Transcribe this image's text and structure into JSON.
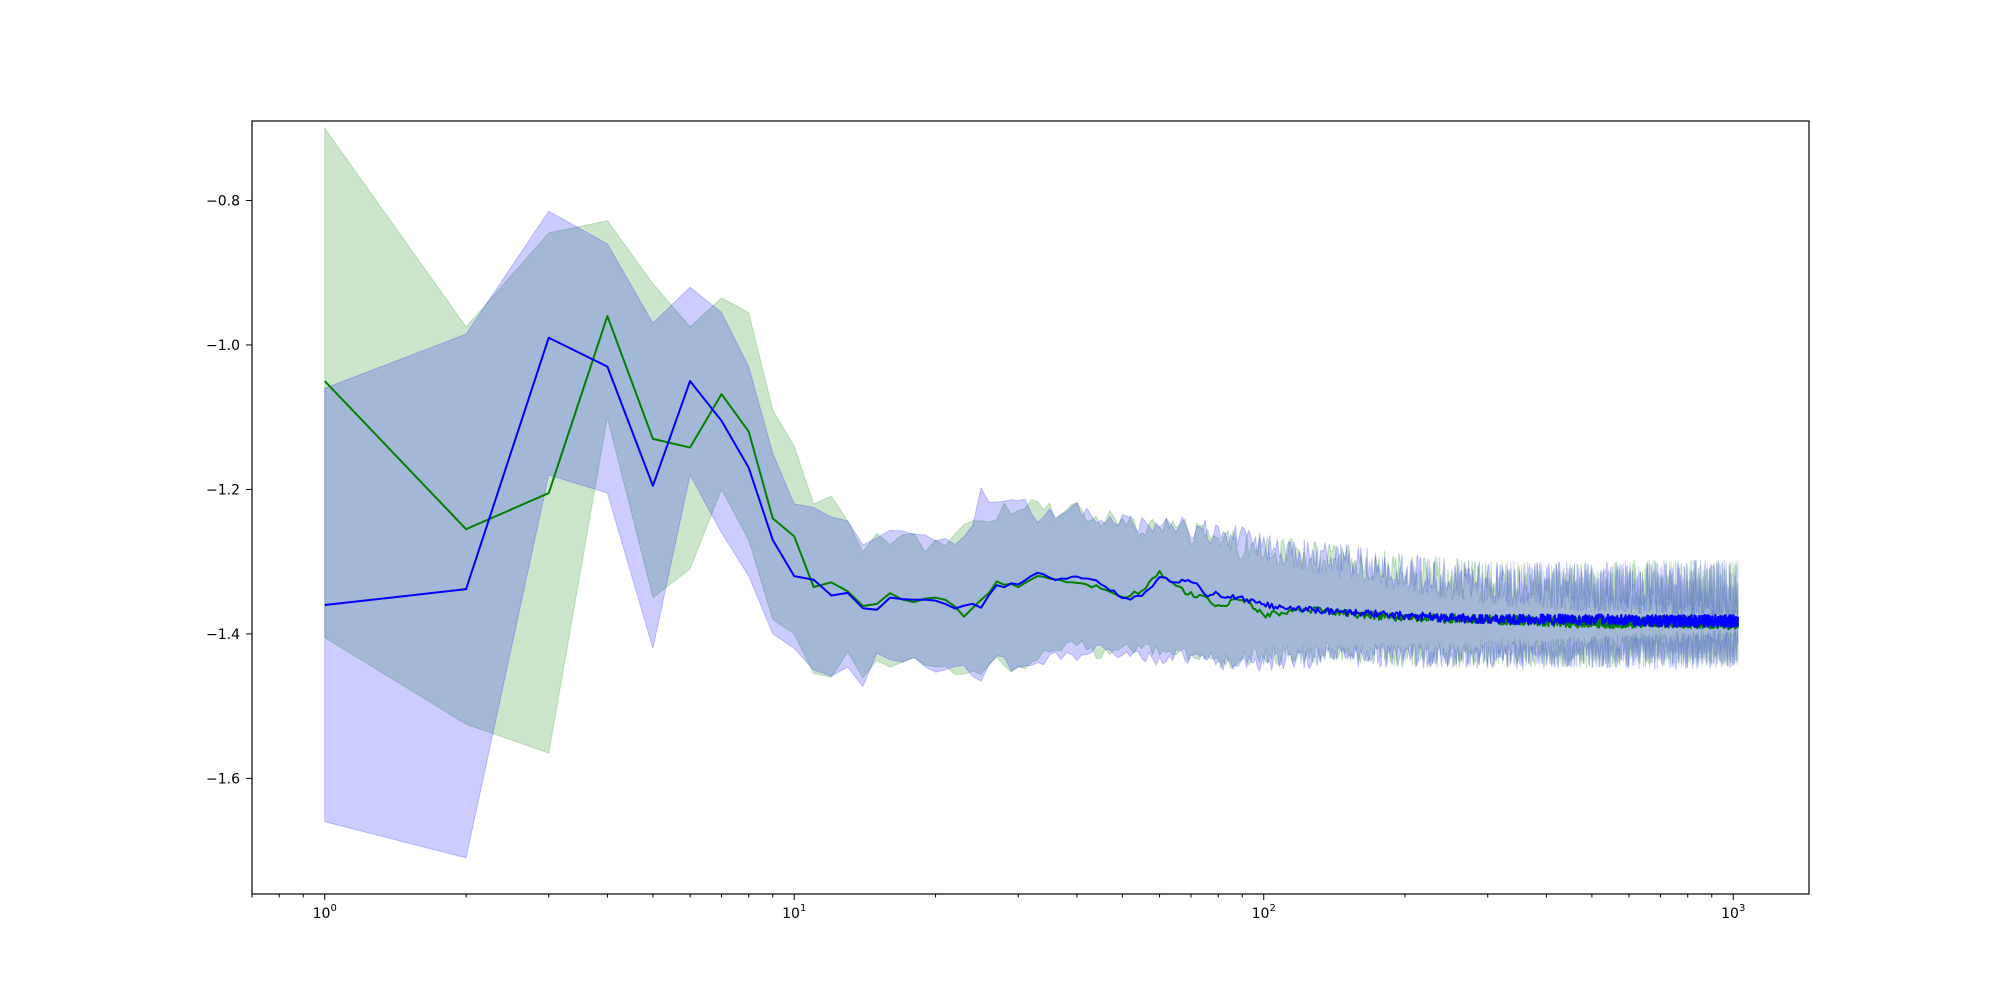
{
  "chart_data": {
    "type": "line",
    "title": "",
    "xlabel": "",
    "ylabel": "",
    "xscale": "log",
    "xlim": [
      0.7,
      1450
    ],
    "ylim": [
      -1.76,
      -0.69
    ],
    "grid": false,
    "legend": "none",
    "x_ticks": [
      {
        "value": 1,
        "base": "10",
        "exp": "0"
      },
      {
        "value": 10,
        "base": "10",
        "exp": "1"
      },
      {
        "value": 100,
        "base": "10",
        "exp": "2"
      },
      {
        "value": 1000,
        "base": "10",
        "exp": "3"
      }
    ],
    "y_ticks": [
      {
        "value": -0.8,
        "label": "−0.8"
      },
      {
        "value": -1.0,
        "label": "−1.0"
      },
      {
        "value": -1.2,
        "label": "−1.2"
      },
      {
        "value": -1.4,
        "label": "−1.4"
      },
      {
        "value": -1.6,
        "label": "−1.6"
      }
    ],
    "x_extent": [
      1,
      1024
    ],
    "series": [
      {
        "color": "#008000",
        "band_color": "#008000",
        "band_opacity": 0.2,
        "mean": [
          [
            1,
            -1.05
          ],
          [
            2,
            -1.255
          ],
          [
            3,
            -1.205
          ],
          [
            4,
            -0.96
          ],
          [
            5,
            -1.13
          ],
          [
            6,
            -1.142
          ],
          [
            7,
            -1.068
          ],
          [
            8,
            -1.12
          ],
          [
            9,
            -1.24
          ],
          [
            10,
            -1.265
          ],
          [
            11,
            -1.335
          ],
          [
            12,
            -1.33
          ],
          [
            13,
            -1.34
          ],
          [
            14,
            -1.36
          ],
          [
            15,
            -1.36
          ],
          [
            16,
            -1.345
          ],
          [
            18,
            -1.355
          ],
          [
            20,
            -1.35
          ],
          [
            22,
            -1.36
          ],
          [
            23,
            -1.375
          ],
          [
            25,
            -1.355
          ],
          [
            27,
            -1.33
          ],
          [
            30,
            -1.335
          ],
          [
            33,
            -1.32
          ],
          [
            36,
            -1.325
          ],
          [
            40,
            -1.33
          ],
          [
            45,
            -1.335
          ],
          [
            50,
            -1.35
          ],
          [
            55,
            -1.34
          ],
          [
            60,
            -1.315
          ],
          [
            65,
            -1.335
          ],
          [
            70,
            -1.345
          ],
          [
            75,
            -1.35
          ],
          [
            80,
            -1.362
          ],
          [
            90,
            -1.35
          ],
          [
            100,
            -1.375
          ],
          [
            120,
            -1.365
          ],
          [
            150,
            -1.372
          ],
          [
            200,
            -1.378
          ],
          [
            300,
            -1.38
          ],
          [
            500,
            -1.385
          ],
          [
            700,
            -1.383
          ],
          [
            1024,
            -1.385
          ]
        ],
        "upper": [
          [
            1,
            -0.7
          ],
          [
            2,
            -0.975
          ],
          [
            3,
            -0.845
          ],
          [
            4,
            -0.828
          ],
          [
            5,
            -0.915
          ],
          [
            6,
            -0.975
          ],
          [
            7,
            -0.935
          ],
          [
            8,
            -0.955
          ],
          [
            9,
            -1.09
          ],
          [
            10,
            -1.14
          ],
          [
            11,
            -1.22
          ],
          [
            12,
            -1.215
          ],
          [
            13,
            -1.24
          ],
          [
            14,
            -1.28
          ],
          [
            15,
            -1.26
          ],
          [
            16,
            -1.265
          ],
          [
            18,
            -1.27
          ],
          [
            20,
            -1.28
          ],
          [
            22,
            -1.26
          ],
          [
            25,
            -1.24
          ],
          [
            27,
            -1.23
          ],
          [
            30,
            -1.225
          ],
          [
            33,
            -1.21
          ],
          [
            36,
            -1.235
          ],
          [
            40,
            -1.23
          ],
          [
            45,
            -1.24
          ],
          [
            50,
            -1.245
          ],
          [
            55,
            -1.255
          ],
          [
            60,
            -1.245
          ],
          [
            70,
            -1.26
          ],
          [
            80,
            -1.27
          ],
          [
            100,
            -1.285
          ],
          [
            120,
            -1.29
          ],
          [
            150,
            -1.3
          ],
          [
            200,
            -1.315
          ],
          [
            300,
            -1.33
          ],
          [
            500,
            -1.335
          ],
          [
            700,
            -1.335
          ],
          [
            1024,
            -1.34
          ]
        ],
        "lower": [
          [
            1,
            -1.405
          ],
          [
            2,
            -1.525
          ],
          [
            3,
            -1.565
          ],
          [
            4,
            -1.1
          ],
          [
            5,
            -1.35
          ],
          [
            6,
            -1.31
          ],
          [
            7,
            -1.2
          ],
          [
            8,
            -1.27
          ],
          [
            9,
            -1.38
          ],
          [
            10,
            -1.4
          ],
          [
            11,
            -1.455
          ],
          [
            12,
            -1.455
          ],
          [
            13,
            -1.43
          ],
          [
            14,
            -1.455
          ],
          [
            15,
            -1.44
          ],
          [
            16,
            -1.445
          ],
          [
            18,
            -1.44
          ],
          [
            20,
            -1.445
          ],
          [
            22,
            -1.455
          ],
          [
            25,
            -1.45
          ],
          [
            27,
            -1.44
          ],
          [
            30,
            -1.45
          ],
          [
            33,
            -1.43
          ],
          [
            36,
            -1.42
          ],
          [
            40,
            -1.41
          ],
          [
            45,
            -1.43
          ],
          [
            50,
            -1.42
          ],
          [
            60,
            -1.425
          ],
          [
            70,
            -1.43
          ],
          [
            80,
            -1.44
          ],
          [
            100,
            -1.43
          ],
          [
            150,
            -1.425
          ],
          [
            200,
            -1.43
          ],
          [
            300,
            -1.425
          ],
          [
            500,
            -1.425
          ],
          [
            700,
            -1.42
          ],
          [
            1024,
            -1.42
          ]
        ]
      },
      {
        "color": "#0000ff",
        "band_color": "#0000ff",
        "band_opacity": 0.2,
        "mean": [
          [
            1,
            -1.36
          ],
          [
            2,
            -1.338
          ],
          [
            3,
            -0.99
          ],
          [
            4,
            -1.03
          ],
          [
            5,
            -1.195
          ],
          [
            6,
            -1.05
          ],
          [
            7,
            -1.105
          ],
          [
            8,
            -1.17
          ],
          [
            9,
            -1.27
          ],
          [
            10,
            -1.32
          ],
          [
            11,
            -1.325
          ],
          [
            12,
            -1.345
          ],
          [
            13,
            -1.345
          ],
          [
            14,
            -1.365
          ],
          [
            15,
            -1.365
          ],
          [
            16,
            -1.352
          ],
          [
            18,
            -1.352
          ],
          [
            20,
            -1.355
          ],
          [
            22,
            -1.365
          ],
          [
            24,
            -1.36
          ],
          [
            25,
            -1.362
          ],
          [
            27,
            -1.335
          ],
          [
            30,
            -1.33
          ],
          [
            33,
            -1.315
          ],
          [
            36,
            -1.325
          ],
          [
            40,
            -1.32
          ],
          [
            45,
            -1.33
          ],
          [
            50,
            -1.35
          ],
          [
            55,
            -1.35
          ],
          [
            60,
            -1.32
          ],
          [
            65,
            -1.33
          ],
          [
            70,
            -1.325
          ],
          [
            75,
            -1.345
          ],
          [
            80,
            -1.345
          ],
          [
            90,
            -1.35
          ],
          [
            100,
            -1.36
          ],
          [
            120,
            -1.365
          ],
          [
            150,
            -1.37
          ],
          [
            200,
            -1.375
          ],
          [
            300,
            -1.38
          ],
          [
            500,
            -1.38
          ],
          [
            700,
            -1.382
          ],
          [
            1024,
            -1.382
          ]
        ],
        "upper": [
          [
            1,
            -1.06
          ],
          [
            2,
            -0.985
          ],
          [
            3,
            -0.815
          ],
          [
            4,
            -0.86
          ],
          [
            5,
            -0.97
          ],
          [
            6,
            -0.92
          ],
          [
            7,
            -0.955
          ],
          [
            8,
            -1.03
          ],
          [
            9,
            -1.15
          ],
          [
            10,
            -1.22
          ],
          [
            11,
            -1.225
          ],
          [
            12,
            -1.245
          ],
          [
            13,
            -1.255
          ],
          [
            14,
            -1.265
          ],
          [
            15,
            -1.255
          ],
          [
            16,
            -1.265
          ],
          [
            18,
            -1.27
          ],
          [
            20,
            -1.265
          ],
          [
            22,
            -1.275
          ],
          [
            24,
            -1.255
          ],
          [
            25,
            -1.2
          ],
          [
            27,
            -1.23
          ],
          [
            30,
            -1.21
          ],
          [
            33,
            -1.24
          ],
          [
            36,
            -1.235
          ],
          [
            40,
            -1.225
          ],
          [
            45,
            -1.24
          ],
          [
            50,
            -1.245
          ],
          [
            55,
            -1.25
          ],
          [
            60,
            -1.245
          ],
          [
            70,
            -1.255
          ],
          [
            80,
            -1.26
          ],
          [
            100,
            -1.28
          ],
          [
            120,
            -1.29
          ],
          [
            150,
            -1.3
          ],
          [
            200,
            -1.315
          ],
          [
            300,
            -1.33
          ],
          [
            500,
            -1.335
          ],
          [
            700,
            -1.335
          ],
          [
            1024,
            -1.34
          ]
        ],
        "lower": [
          [
            1,
            -1.66
          ],
          [
            2,
            -1.71
          ],
          [
            3,
            -1.18
          ],
          [
            4,
            -1.205
          ],
          [
            5,
            -1.42
          ],
          [
            6,
            -1.18
          ],
          [
            7,
            -1.26
          ],
          [
            8,
            -1.32
          ],
          [
            9,
            -1.4
          ],
          [
            10,
            -1.42
          ],
          [
            11,
            -1.45
          ],
          [
            12,
            -1.45
          ],
          [
            13,
            -1.445
          ],
          [
            14,
            -1.465
          ],
          [
            15,
            -1.43
          ],
          [
            16,
            -1.44
          ],
          [
            18,
            -1.44
          ],
          [
            20,
            -1.45
          ],
          [
            22,
            -1.445
          ],
          [
            25,
            -1.46
          ],
          [
            27,
            -1.43
          ],
          [
            30,
            -1.45
          ],
          [
            33,
            -1.44
          ],
          [
            36,
            -1.43
          ],
          [
            40,
            -1.435
          ],
          [
            45,
            -1.42
          ],
          [
            50,
            -1.43
          ],
          [
            60,
            -1.435
          ],
          [
            70,
            -1.43
          ],
          [
            80,
            -1.44
          ],
          [
            100,
            -1.44
          ],
          [
            150,
            -1.43
          ],
          [
            200,
            -1.43
          ],
          [
            300,
            -1.43
          ],
          [
            500,
            -1.425
          ],
          [
            700,
            -1.425
          ],
          [
            1024,
            -1.42
          ]
        ]
      }
    ]
  }
}
